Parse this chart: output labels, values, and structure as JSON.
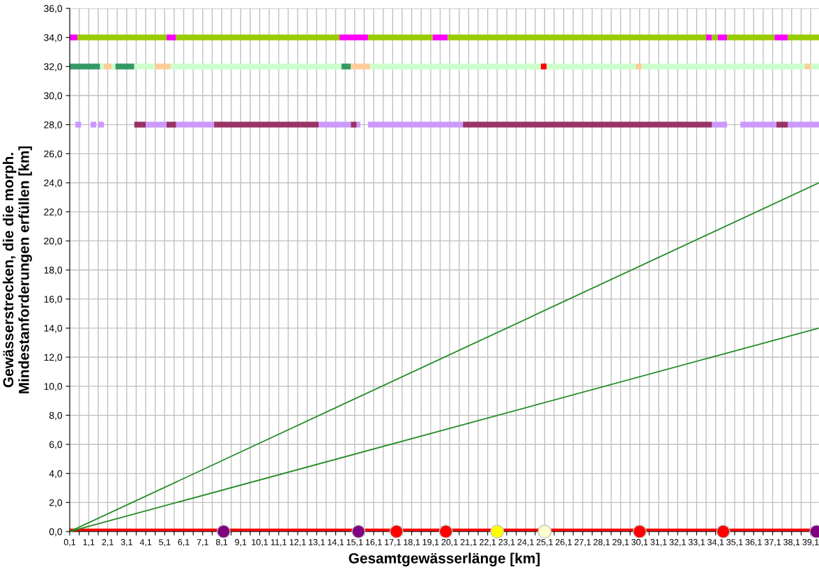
{
  "chart_data": {
    "type": "line",
    "xlabel": "Gesamtgewässerlänge [km]",
    "ylabel": "Gewässerstrecken, die die morph.\nMindestanforderungen erfüllen [km]",
    "xlim": [
      0.1,
      39.54
    ],
    "ylim": [
      0,
      36
    ],
    "yticks": [
      {
        "value": 0,
        "label": "0,0"
      },
      {
        "value": 2,
        "label": "2,0"
      },
      {
        "value": 4,
        "label": "4,0"
      },
      {
        "value": 6,
        "label": "6,0"
      },
      {
        "value": 8,
        "label": "8,0"
      },
      {
        "value": 10,
        "label": "10,0"
      },
      {
        "value": 12,
        "label": "12,0"
      },
      {
        "value": 14,
        "label": "14,0"
      },
      {
        "value": 16,
        "label": "16,0"
      },
      {
        "value": 18,
        "label": "18,0"
      },
      {
        "value": 20,
        "label": "20,0"
      },
      {
        "value": 22,
        "label": "22,0"
      },
      {
        "value": 24,
        "label": "24,0"
      },
      {
        "value": 26,
        "label": "26,0"
      },
      {
        "value": 28,
        "label": "28,0"
      },
      {
        "value": 30,
        "label": "30,0"
      },
      {
        "value": 32,
        "label": "32,0"
      },
      {
        "value": 34,
        "label": "34,0"
      },
      {
        "value": 36,
        "label": "36,0"
      }
    ],
    "xticks": [
      {
        "value": 0.1,
        "label": "0,1"
      },
      {
        "value": 0.6,
        "label": null
      },
      {
        "value": 1.1,
        "label": "1,1"
      },
      {
        "value": 1.6,
        "label": null
      },
      {
        "value": 2.1,
        "label": "2,1"
      },
      {
        "value": 2.6,
        "label": null
      },
      {
        "value": 3.1,
        "label": "3,1"
      },
      {
        "value": 3.6,
        "label": null
      },
      {
        "value": 4.1,
        "label": "4,1"
      },
      {
        "value": 4.6,
        "label": null
      },
      {
        "value": 5.1,
        "label": "5,1"
      },
      {
        "value": 5.6,
        "label": null
      },
      {
        "value": 6.1,
        "label": "6,1"
      },
      {
        "value": 6.6,
        "label": null
      },
      {
        "value": 7.1,
        "label": "7,1"
      },
      {
        "value": 7.6,
        "label": null
      },
      {
        "value": 8.1,
        "label": "8,1"
      },
      {
        "value": 8.6,
        "label": null
      },
      {
        "value": 9.1,
        "label": "9,1"
      },
      {
        "value": 9.6,
        "label": null
      },
      {
        "value": 10.1,
        "label": "10,1"
      },
      {
        "value": 10.6,
        "label": null
      },
      {
        "value": 11.1,
        "label": "11,1"
      },
      {
        "value": 11.6,
        "label": null
      },
      {
        "value": 12.1,
        "label": "12,1"
      },
      {
        "value": 12.6,
        "label": null
      },
      {
        "value": 13.1,
        "label": "13,1"
      },
      {
        "value": 13.6,
        "label": null
      },
      {
        "value": 14.1,
        "label": "14,1"
      },
      {
        "value": 14.6,
        "label": null
      },
      {
        "value": 15.1,
        "label": "15,1"
      },
      {
        "value": 15.6,
        "label": null
      },
      {
        "value": 16.1,
        "label": "16,1"
      },
      {
        "value": 16.6,
        "label": null
      },
      {
        "value": 17.1,
        "label": "17,1"
      },
      {
        "value": 17.6,
        "label": null
      },
      {
        "value": 18.1,
        "label": "18,1"
      },
      {
        "value": 18.6,
        "label": null
      },
      {
        "value": 19.1,
        "label": "19,1"
      },
      {
        "value": 19.6,
        "label": null
      },
      {
        "value": 20.1,
        "label": "20,1"
      },
      {
        "value": 20.6,
        "label": null
      },
      {
        "value": 21.1,
        "label": "21,1"
      },
      {
        "value": 21.6,
        "label": null
      },
      {
        "value": 22.1,
        "label": "22,1"
      },
      {
        "value": 22.6,
        "label": null
      },
      {
        "value": 23.1,
        "label": "23,1"
      },
      {
        "value": 23.6,
        "label": null
      },
      {
        "value": 24.1,
        "label": "24,1"
      },
      {
        "value": 24.6,
        "label": null
      },
      {
        "value": 25.1,
        "label": "25,1"
      },
      {
        "value": 25.6,
        "label": null
      },
      {
        "value": 26.1,
        "label": "26,1"
      },
      {
        "value": 26.6,
        "label": null
      },
      {
        "value": 27.1,
        "label": "27,1"
      },
      {
        "value": 27.6,
        "label": null
      },
      {
        "value": 28.1,
        "label": "28,1"
      },
      {
        "value": 28.6,
        "label": null
      },
      {
        "value": 29.1,
        "label": "29,1"
      },
      {
        "value": 29.6,
        "label": null
      },
      {
        "value": 30.1,
        "label": "30,1"
      },
      {
        "value": 30.6,
        "label": null
      },
      {
        "value": 31.1,
        "label": "31,1"
      },
      {
        "value": 31.6,
        "label": null
      },
      {
        "value": 32.1,
        "label": "32,1"
      },
      {
        "value": 32.6,
        "label": null
      },
      {
        "value": 33.1,
        "label": "33,1"
      },
      {
        "value": 33.6,
        "label": null
      },
      {
        "value": 34.1,
        "label": "34,1"
      },
      {
        "value": 34.6,
        "label": null
      },
      {
        "value": 35.1,
        "label": "35,1"
      },
      {
        "value": 35.6,
        "label": null
      },
      {
        "value": 36.1,
        "label": "36,1"
      },
      {
        "value": 36.6,
        "label": null
      },
      {
        "value": 37.1,
        "label": "37,1"
      },
      {
        "value": 37.6,
        "label": null
      },
      {
        "value": 38.1,
        "label": "38,1"
      },
      {
        "value": 38.6,
        "label": null
      },
      {
        "value": 39.1,
        "label": "39,1"
      }
    ],
    "grid": true,
    "legend": false,
    "series": [
      {
        "color": "#ff00ff",
        "x": [
          0.1,
          0.5
        ],
        "values": [
          34,
          34
        ]
      },
      {
        "color": "#ff00ff",
        "x": [
          5.2,
          5.7
        ],
        "values": [
          34,
          34
        ]
      },
      {
        "color": "#ff00ff",
        "x": [
          14.3,
          15.8
        ],
        "values": [
          34,
          34
        ]
      },
      {
        "color": "#ff00ff",
        "x": [
          19.2,
          20.0
        ],
        "values": [
          34,
          34
        ]
      },
      {
        "color": "#ff00ff",
        "x": [
          33.6,
          33.9
        ],
        "values": [
          34,
          34
        ]
      },
      {
        "color": "#ff00ff",
        "x": [
          34.2,
          34.7
        ],
        "values": [
          34,
          34
        ]
      },
      {
        "color": "#ff00ff",
        "x": [
          37.2,
          37.9
        ],
        "values": [
          34,
          34
        ]
      },
      {
        "color": "#99cc00",
        "x": [
          0.5,
          5.2
        ],
        "values": [
          34,
          34
        ]
      },
      {
        "color": "#99cc00",
        "x": [
          5.7,
          14.3
        ],
        "values": [
          34,
          34
        ]
      },
      {
        "color": "#99cc00",
        "x": [
          15.8,
          19.2
        ],
        "values": [
          34,
          34
        ]
      },
      {
        "color": "#99cc00",
        "x": [
          20.0,
          33.6
        ],
        "values": [
          34,
          34
        ]
      },
      {
        "color": "#99cc00",
        "x": [
          33.9,
          34.2
        ],
        "values": [
          34,
          34
        ]
      },
      {
        "color": "#99cc00",
        "x": [
          34.7,
          37.2
        ],
        "values": [
          34,
          34
        ]
      },
      {
        "color": "#99cc00",
        "x": [
          37.9,
          39.54
        ],
        "values": [
          34,
          34
        ]
      },
      {
        "color": "#339966",
        "x": [
          0.1,
          1.7
        ],
        "values": [
          32,
          32
        ]
      },
      {
        "color": "#339966",
        "x": [
          2.5,
          3.5
        ],
        "values": [
          32,
          32
        ]
      },
      {
        "color": "#339966",
        "x": [
          14.4,
          14.9
        ],
        "values": [
          32,
          32
        ]
      },
      {
        "color": "#ccffcc",
        "x": [
          1.7,
          1.9
        ],
        "values": [
          32,
          32
        ]
      },
      {
        "color": "#ccffcc",
        "x": [
          2.3,
          2.5
        ],
        "values": [
          32,
          32
        ]
      },
      {
        "color": "#ccffcc",
        "x": [
          3.5,
          4.6
        ],
        "values": [
          32,
          32
        ]
      },
      {
        "color": "#ccffcc",
        "x": [
          5.4,
          14.4
        ],
        "values": [
          32,
          32
        ]
      },
      {
        "color": "#ccffcc",
        "x": [
          15.9,
          24.9
        ],
        "values": [
          32,
          32
        ]
      },
      {
        "color": "#ccffcc",
        "x": [
          25.2,
          29.9
        ],
        "values": [
          32,
          32
        ]
      },
      {
        "color": "#ccffcc",
        "x": [
          30.2,
          38.8
        ],
        "values": [
          32,
          32
        ]
      },
      {
        "color": "#ccffcc",
        "x": [
          39.1,
          39.54
        ],
        "values": [
          32,
          32
        ]
      },
      {
        "color": "#ffcc99",
        "x": [
          1.9,
          2.3
        ],
        "values": [
          32,
          32
        ]
      },
      {
        "color": "#ffcc99",
        "x": [
          4.6,
          5.4
        ],
        "values": [
          32,
          32
        ]
      },
      {
        "color": "#ffcc99",
        "x": [
          14.9,
          15.9
        ],
        "values": [
          32,
          32
        ]
      },
      {
        "color": "#ffcc99",
        "x": [
          29.9,
          30.2
        ],
        "values": [
          32,
          32
        ]
      },
      {
        "color": "#ffcc99",
        "x": [
          38.8,
          39.1
        ],
        "values": [
          32,
          32
        ]
      },
      {
        "color": "#ff0000",
        "x": [
          24.9,
          25.2
        ],
        "values": [
          32,
          32
        ]
      },
      {
        "color": "#cc99ff",
        "x": [
          0.4,
          0.7
        ],
        "values": [
          28,
          28
        ]
      },
      {
        "color": "#cc99ff",
        "x": [
          1.2,
          1.5
        ],
        "values": [
          28,
          28
        ]
      },
      {
        "color": "#cc99ff",
        "x": [
          1.6,
          1.9
        ],
        "values": [
          28,
          28
        ]
      },
      {
        "color": "#cc99ff",
        "x": [
          4.1,
          5.2
        ],
        "values": [
          28,
          28
        ]
      },
      {
        "color": "#cc99ff",
        "x": [
          5.7,
          7.7
        ],
        "values": [
          28,
          28
        ]
      },
      {
        "color": "#cc99ff",
        "x": [
          13.2,
          14.9
        ],
        "values": [
          28,
          28
        ]
      },
      {
        "color": "#cc99ff",
        "x": [
          15.2,
          15.4
        ],
        "values": [
          28,
          28
        ]
      },
      {
        "color": "#cc99ff",
        "x": [
          15.8,
          20.8
        ],
        "values": [
          28,
          28
        ]
      },
      {
        "color": "#cc99ff",
        "x": [
          33.9,
          34.7
        ],
        "values": [
          28,
          28
        ]
      },
      {
        "color": "#cc99ff",
        "x": [
          35.4,
          37.3
        ],
        "values": [
          28,
          28
        ]
      },
      {
        "color": "#cc99ff",
        "x": [
          37.9,
          39.54
        ],
        "values": [
          28,
          28
        ]
      },
      {
        "color": "#993366",
        "x": [
          3.5,
          4.1
        ],
        "values": [
          28,
          28
        ]
      },
      {
        "color": "#993366",
        "x": [
          5.2,
          5.7
        ],
        "values": [
          28,
          28
        ]
      },
      {
        "color": "#993366",
        "x": [
          7.7,
          13.2
        ],
        "values": [
          28,
          28
        ]
      },
      {
        "color": "#993366",
        "x": [
          14.9,
          15.2
        ],
        "values": [
          28,
          28
        ]
      },
      {
        "color": "#993366",
        "x": [
          20.8,
          33.9
        ],
        "values": [
          28,
          28
        ]
      },
      {
        "color": "#993366",
        "x": [
          37.3,
          37.9
        ],
        "values": [
          28,
          28
        ]
      },
      {
        "color": "#228b22",
        "x": [
          0.1,
          39.54
        ],
        "values": [
          0,
          24.0
        ]
      },
      {
        "color": "#228b22",
        "x": [
          0.1,
          39.54
        ],
        "values": [
          0,
          14.0
        ]
      },
      {
        "color": "#ff0000",
        "x": [
          0.1,
          39.1
        ],
        "values": [
          0,
          0
        ]
      },
      {
        "type": "scatter",
        "x": [
          8.2,
          15.3,
          17.3,
          19.9,
          22.6,
          25.1,
          30.1,
          34.5,
          39.4
        ],
        "values": [
          0,
          0,
          0,
          0,
          0,
          0,
          0,
          0,
          0
        ],
        "colors": [
          "#800080",
          "#800080",
          "#ff0000",
          "#ff0000",
          "#ffff00",
          "#ffffcc",
          "#ff0000",
          "#ff0000",
          "#800080"
        ]
      }
    ]
  }
}
